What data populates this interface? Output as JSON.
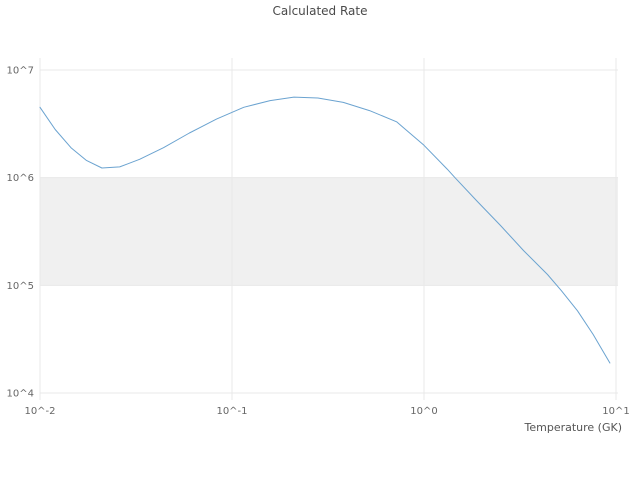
{
  "chart_data": {
    "type": "line",
    "title": "Calculated Rate",
    "xlabel": "Temperature (GK)",
    "ylabel": "",
    "x_scale": "log",
    "y_scale": "log",
    "xlim": [
      0.01,
      10
    ],
    "ylim": [
      10000,
      10000000
    ],
    "grid": true,
    "legend": "none",
    "x_ticks": [
      {
        "value": 0.01,
        "label": "10^-2"
      },
      {
        "value": 0.1,
        "label": "10^-1"
      },
      {
        "value": 1,
        "label": "10^0"
      },
      {
        "value": 10,
        "label": "10^1"
      }
    ],
    "y_ticks": [
      {
        "value": 10000,
        "label": "10^4"
      },
      {
        "value": 100000,
        "label": "10^5"
      },
      {
        "value": 1000000,
        "label": "10^6"
      },
      {
        "value": 10000000,
        "label": "10^7"
      }
    ],
    "highlight_band": {
      "y_min": 100000,
      "y_max": 1000000,
      "color": "#f0f0f0"
    },
    "colors": {
      "line": "#6ba3d0",
      "grid": "#e8e8e8",
      "tick_text": "#666666",
      "title_text": "#4a4a4a",
      "background": "#ffffff"
    },
    "series": [
      {
        "name": "Calculated Rate",
        "x": [
          0.01,
          0.012,
          0.0145,
          0.0174,
          0.021,
          0.026,
          0.033,
          0.044,
          0.06,
          0.083,
          0.115,
          0.158,
          0.21,
          0.28,
          0.38,
          0.52,
          0.72,
          1.0,
          1.32,
          1.45,
          1.9,
          2.5,
          3.3,
          4.4,
          5.2,
          6.3,
          7.6,
          8.5,
          9.3
        ],
        "y": [
          4500000,
          2800000,
          1900000,
          1450000,
          1230000,
          1260000,
          1480000,
          1900000,
          2600000,
          3500000,
          4500000,
          5200000,
          5600000,
          5500000,
          5000000,
          4200000,
          3300000,
          2000000,
          1200000,
          1000000,
          600000,
          360000,
          210000,
          126000,
          89000,
          58000,
          35000,
          25000,
          19000
        ]
      }
    ]
  }
}
